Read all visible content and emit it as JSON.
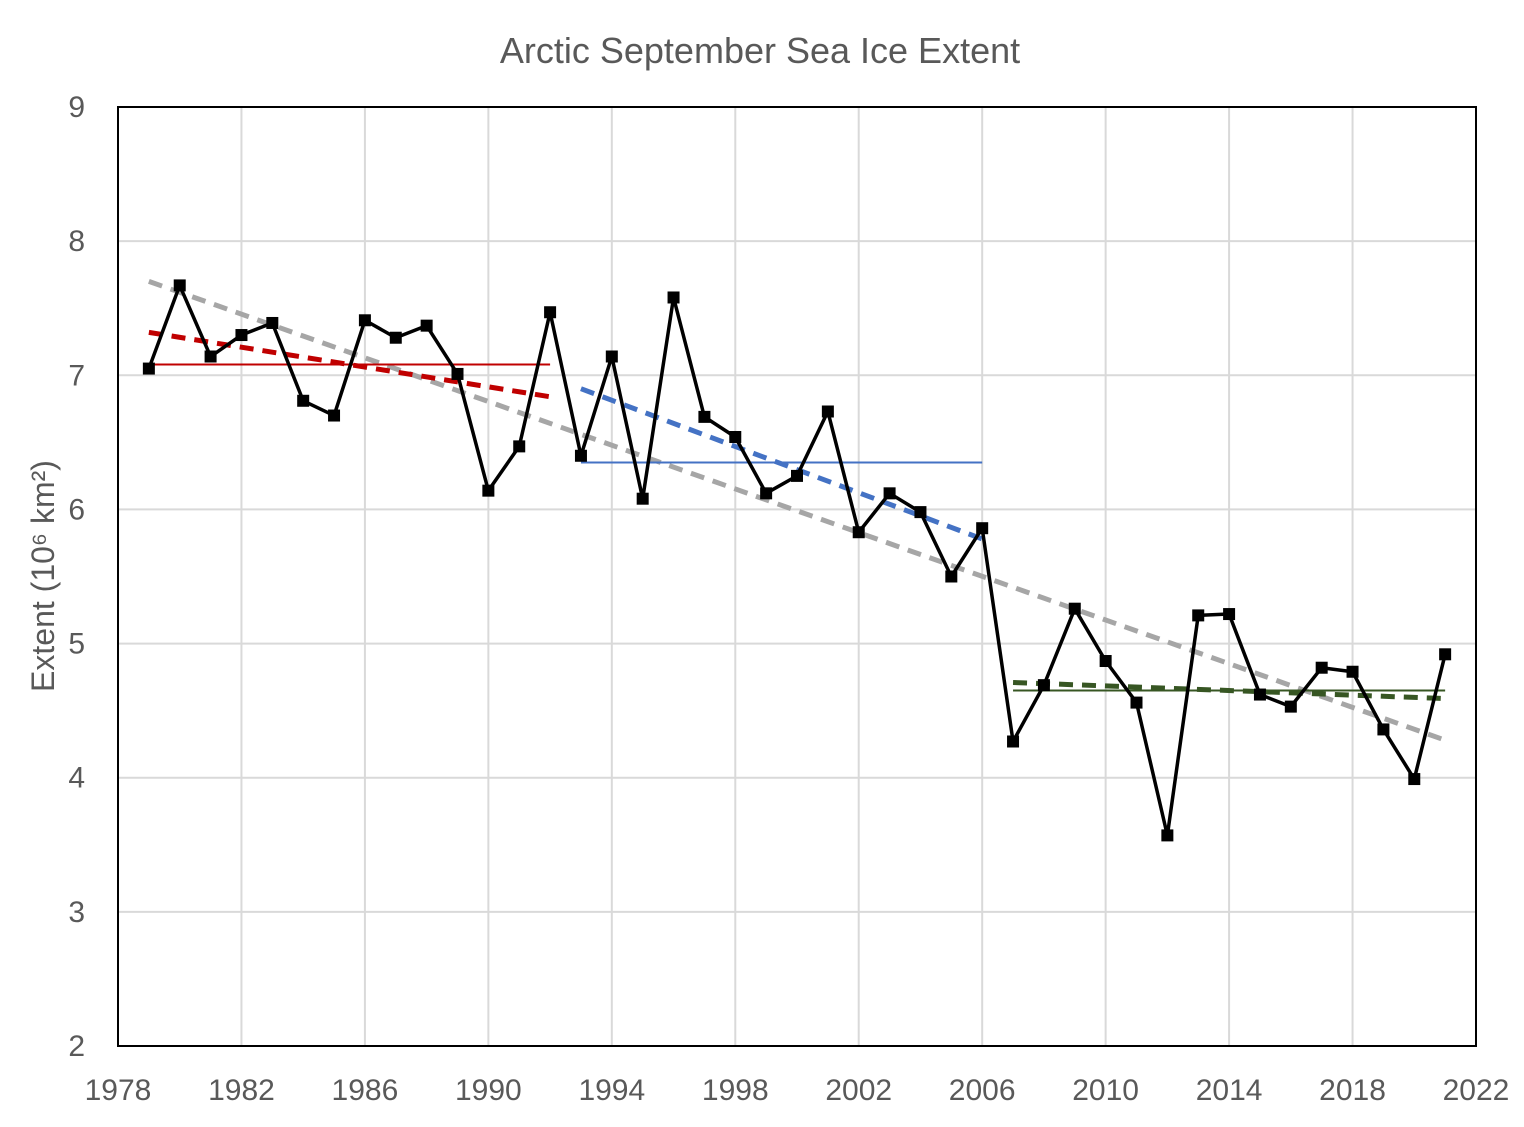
{
  "chart_data": {
    "type": "line",
    "title": "Arctic September Sea Ice Extent",
    "xlabel": "",
    "ylabel": "Extent (10⁶ km²)",
    "xlim": [
      1978,
      2022
    ],
    "ylim": [
      2,
      9
    ],
    "x_ticks": [
      "1978",
      "1982",
      "1986",
      "1990",
      "1994",
      "1998",
      "2002",
      "2006",
      "2010",
      "2014",
      "2018",
      "2022"
    ],
    "y_ticks": [
      "2",
      "3",
      "4",
      "5",
      "6",
      "7",
      "8",
      "9"
    ],
    "grid": true,
    "series": [
      {
        "color": "#000000",
        "marker": "square",
        "x": [
          1979,
          1980,
          1981,
          1982,
          1983,
          1984,
          1985,
          1986,
          1987,
          1988,
          1989,
          1990,
          1991,
          1992,
          1993,
          1994,
          1995,
          1996,
          1997,
          1998,
          1999,
          2000,
          2001,
          2002,
          2003,
          2004,
          2005,
          2006,
          2007,
          2008,
          2009,
          2010,
          2011,
          2012,
          2013,
          2014,
          2015,
          2016,
          2017,
          2018,
          2019,
          2020,
          2021
        ],
        "values": [
          7.05,
          7.67,
          7.14,
          7.3,
          7.39,
          6.81,
          6.7,
          7.41,
          7.28,
          7.37,
          7.01,
          6.14,
          6.47,
          7.47,
          6.4,
          7.14,
          6.08,
          7.58,
          6.69,
          6.54,
          6.12,
          6.25,
          6.73,
          5.83,
          6.12,
          5.98,
          5.5,
          5.86,
          4.27,
          4.69,
          5.26,
          4.87,
          4.56,
          3.57,
          5.21,
          5.22,
          4.62,
          4.53,
          4.82,
          4.79,
          4.36,
          3.99,
          4.92
        ]
      }
    ],
    "trend_lines": [
      {
        "color": "#a6a6a6",
        "style": "dashed",
        "x": [
          1979,
          2021
        ],
        "values": [
          7.7,
          4.28
        ]
      },
      {
        "color": "#c00000",
        "style": "dashed",
        "x": [
          1979,
          1992
        ],
        "values": [
          7.32,
          6.84
        ]
      },
      {
        "color": "#c00000",
        "style": "solid",
        "x": [
          1979,
          1992
        ],
        "values": [
          7.08,
          7.08
        ]
      },
      {
        "color": "#4472c4",
        "style": "dashed",
        "x": [
          1993,
          2006
        ],
        "values": [
          6.9,
          5.78
        ]
      },
      {
        "color": "#4472c4",
        "style": "solid",
        "x": [
          1993,
          2006
        ],
        "values": [
          6.35,
          6.35
        ]
      },
      {
        "color": "#375623",
        "style": "dashed",
        "x": [
          2007,
          2021
        ],
        "values": [
          4.71,
          4.59
        ]
      },
      {
        "color": "#375623",
        "style": "solid",
        "x": [
          2007,
          2021
        ],
        "values": [
          4.65,
          4.65
        ]
      }
    ]
  }
}
